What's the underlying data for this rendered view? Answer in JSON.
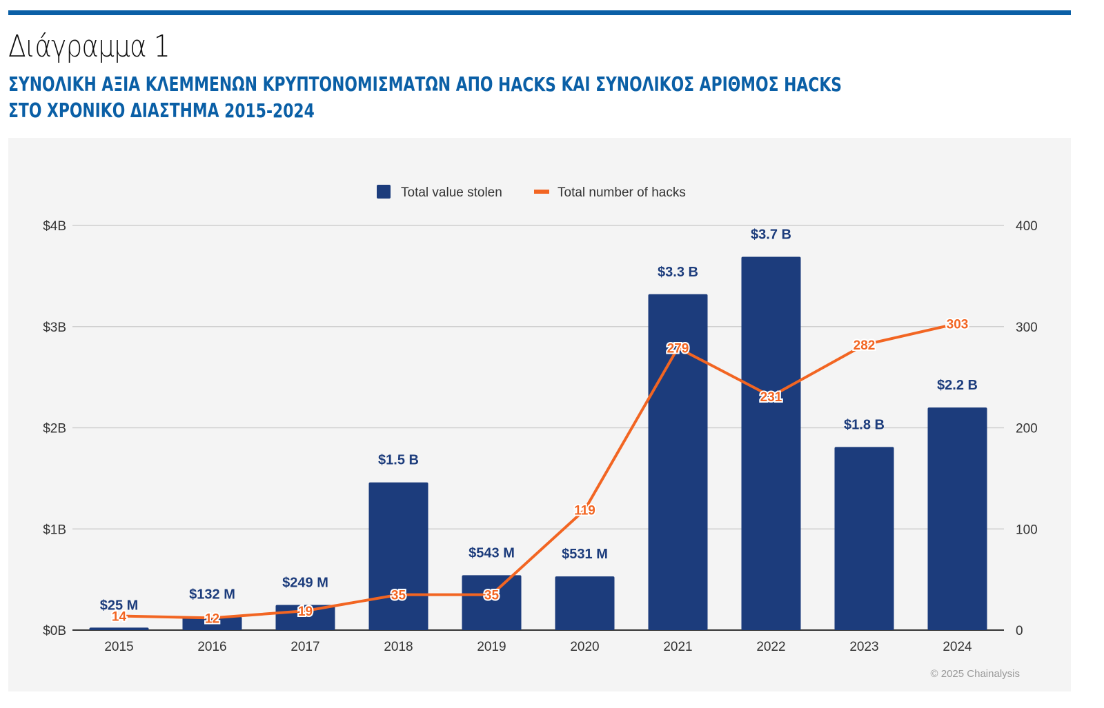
{
  "header": {
    "figure_label": "Διάγραμμα 1",
    "subtitle_line1": "ΣΥΝΟΛΙΚΗ ΑΞΙΑ ΚΛΕΜΜΕΝΩΝ ΚΡΥΠΤΟΝΟΜΙΣΜΑΤΩΝ ΑΠΟ HACKS ΚΑΙ ΣΥΝΟΛΙΚΟΣ ΑΡΙΘΜΟΣ HACKS",
    "subtitle_line2": "ΣΤΟ ΧΡΟΝΙΚΟ ΔΙΑΣΤΗΜΑ 2015-2024"
  },
  "chart_data": {
    "type": "bar",
    "categories": [
      "2015",
      "2016",
      "2017",
      "2018",
      "2019",
      "2020",
      "2021",
      "2022",
      "2023",
      "2024"
    ],
    "series": [
      {
        "name": "Total value stolen",
        "type": "bar",
        "axis": "left",
        "unit": "billion USD",
        "color": "#1c3c7c",
        "values": [
          0.025,
          0.132,
          0.249,
          1.46,
          0.543,
          0.531,
          3.32,
          3.69,
          1.81,
          2.2
        ],
        "labels": [
          "$25  M",
          "$132  M",
          "$249  M",
          "$1.5 B",
          "$543  M",
          "$531  M",
          "$3.3 B",
          "$3.7 B",
          "$1.8 B",
          "$2.2 B"
        ]
      },
      {
        "name": "Total number of hacks",
        "type": "line",
        "axis": "right",
        "color": "#f26522",
        "values": [
          14,
          12,
          19,
          35,
          35,
          119,
          279,
          231,
          282,
          303
        ],
        "labels": [
          "14",
          "12",
          "19",
          "35",
          "35",
          "119",
          "279",
          "231",
          "282",
          "303"
        ]
      }
    ],
    "yleft": {
      "ticks": [
        "$0B",
        "$1B",
        "$2B",
        "$3B",
        "$4B"
      ],
      "range": [
        0,
        4
      ]
    },
    "yright": {
      "ticks": [
        "0",
        "100",
        "200",
        "300",
        "400"
      ],
      "range": [
        0,
        400
      ]
    },
    "legend": "top-center",
    "grid": true,
    "credit": "© 2025 Chainalysis"
  }
}
